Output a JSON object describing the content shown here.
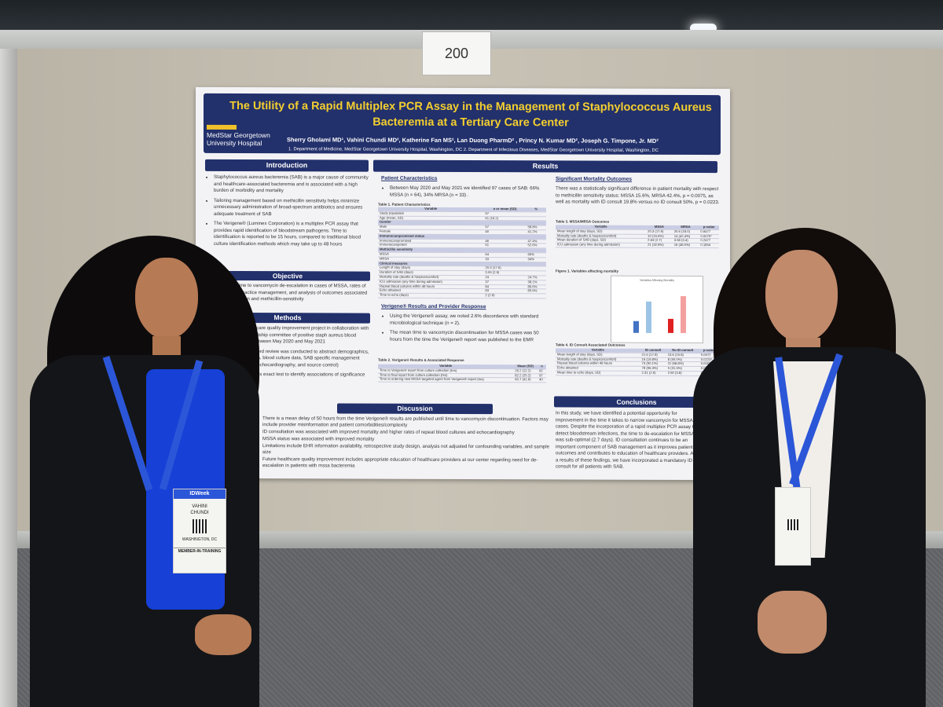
{
  "booth": {
    "number": "200"
  },
  "poster": {
    "title": "The Utility of a Rapid Multiplex PCR Assay in the Management of Staphylococcus Aureus Bacteremia at a Tertiary Care Center",
    "logo_line1": "MedStar Georgetown",
    "logo_line2": "University Hospital",
    "authors": "Sherry Gholami MD¹, Vahini Chundi MD², Katherine Fan MS², Lan Duong PharmD² , Princy N. Kumar MD², Joseph G. Timpone, Jr. MD²",
    "affiliations": "1.   Department of Medicine, MedStar Georgetown University Hospital, Washington, DC  2. Department of Infectious Diseases, MedStar Georgetown University Hospital, Washington, DC",
    "introduction": {
      "heading": "Introduction",
      "bullets": [
        "Staphylococcus aureus bacteremia (SAB) is a major cause of community and healthcare-associated bacteremia and is associated with a high burden of morbidity and mortality",
        "Tailoring management based on methicillin sensitivity helps minimize unnecessary administration of broad-spectrum antibiotics and ensures adequate treatment of SAB",
        "The Verigene® (Luminex Corporation) is a multiplex PCR assay that provides rapid identification of bloodstream pathogens. Time to identification is reported to be 15 hours, compared to traditional blood culture identification methods which may take up to 48 hours"
      ]
    },
    "objective": {
      "heading": "Objective",
      "text": "To determine time to vancomycin de-escalation in cases of MSSA, rates of achieving best practice management, and analysis of outcomes associated with ID consultation and methicillin-sensitivity"
    },
    "methods": {
      "heading": "Methods",
      "bullets": [
        "Single-center healthcare quality improvement project in collaboration with our antibiotic stewardship committee of positive staph aureus blood cultures at MGUH between May 2020 and May 2021",
        "Electronic health record review was conducted to abstract demographics, clinical characteristics, blood culture data, SAB specific management (antibiotic selection, echocardiography, and source control)",
        "Chi-square and fishers exact test to identify associations of significance"
      ]
    },
    "results": {
      "heading": "Results",
      "patient_char_title": "Patient Characteristics",
      "patient_char_text": "Between May 2020 and May 2021 we identified 97 cases of SAB: 66% MSSA (n = 64), 34% MRSA (n = 33) .",
      "table1_title": "Table 1. Patient Characteristics",
      "table1_headers": [
        "Variable",
        "n or mean (SD)",
        "%"
      ],
      "table1_rows": [
        [
          "Study population",
          "97",
          ""
        ],
        [
          "Age (mean, SD)",
          "61 (16.2)",
          ""
        ],
        [
          "Gender",
          "",
          ""
        ],
        [
          "Male",
          "57",
          "58.8%"
        ],
        [
          "Female",
          "40",
          "41.2%"
        ],
        [
          "Immunocompromised status",
          "",
          ""
        ],
        [
          "Immunocompromised",
          "46",
          "47.4%"
        ],
        [
          "Immunocompetent",
          "51",
          "52.6%"
        ],
        [
          "Methicillin sensitivity",
          "",
          ""
        ],
        [
          "MSSA",
          "64",
          "66%"
        ],
        [
          "MRSA",
          "33",
          "34%"
        ],
        [
          "Clinical measures",
          "",
          ""
        ],
        [
          "Length of stay (days)",
          "20.3 (17.6)",
          ""
        ],
        [
          "Duration of SAB (days)",
          "3.09 (2.9)",
          ""
        ],
        [
          "Mortality rate (deaths & hospice/comfort)",
          "24",
          "24.7%"
        ],
        [
          "ICU admission (any time during admission)",
          "37",
          "38.1%"
        ],
        [
          "Repeat blood cultures within 48 hours",
          "84",
          "86.6%"
        ],
        [
          "Echo obtained",
          "83",
          "85.6%"
        ],
        [
          "Time to echo (days)",
          "2 (2.9)",
          ""
        ]
      ],
      "verigene_title": "Verigene® Results and Provider Response",
      "verigene_bullets": [
        "Using the Verigene® assay, we noted 2.6% discordance with standard microbiological technique (n = 2).",
        "The mean time to vancomycin discontinuation for MSSA cases was 50 hours from the time the Verigene® report was published to the EMR"
      ],
      "table2_title": "Table 2. Verigene® Results & Associated Response",
      "table2_headers": [
        "Variable",
        "Mean (SD)",
        "n"
      ],
      "table2_rows": [
        [
          "Time to Verigene® report from culture collection (hrs)",
          "26.2 (12.2)",
          "92"
        ],
        [
          "Time to final report from culture collection (hrs)",
          "82.2 (25.2)",
          "97"
        ],
        [
          "Time to ordering new MSSA-targeted agent from Verigene® report (hrs)",
          "60.7 (41.6)",
          "40"
        ]
      ],
      "mortality_title": "Significant Mortality Outcomes",
      "mortality_text": "There was a statistically significant difference in patient mortality with respect to methicillin sensitivity status: MSSA 15.6%, MRSA 42.4%, p = 0.0075, as well as mortality with ID consult 19.8% versus no ID consult 50%, p = 0.0223.",
      "table3_title": "Table 3. MSSA/MRSA Outcomes",
      "table3_headers": [
        "Variable",
        "MSSA",
        "MRSA",
        "p-value"
      ],
      "table3_rows": [
        [
          "Mean length of stay (days, SD)",
          "20.3 (17.6)",
          "20.6 (18.0)",
          "0.9477"
        ],
        [
          "Mortality rate (deaths & hospice/comfort)",
          "10 (15.6%)",
          "14 (42.4%)",
          "0.0075*"
        ],
        [
          "Mean duration of SAB (days, SD)",
          "2.64 (2.7)",
          "3.58 (3.4)",
          "0.2477"
        ],
        [
          "ICU admission (any time during admission)",
          "21 (32.8%)",
          "16 (48.5%)",
          "0.1854"
        ]
      ],
      "figure_title": "Figure 1. Variables affecting mortality",
      "figure_inner_title": "Variables Affecting Mortality",
      "table4_title": "Table 4. ID Consult Associated Outcomes",
      "table4_headers": [
        "Variable",
        "ID consult",
        "No ID consult",
        "p-value"
      ],
      "table4_rows": [
        [
          "Mean length of stay (days, SD)",
          "21.6 (17.8)",
          "13.6 (15.8)",
          "0.0972"
        ],
        [
          "Mortality rate (deaths & hospice/comfort)",
          "16 (19.8%)",
          "8 (50.0%)",
          "0.0223*"
        ],
        [
          "Repeat blood cultures within 48 hours",
          "73 (90.1%)",
          "11 (68.8%)",
          "0.0001*"
        ],
        [
          "Echo obtained",
          "78 (96.3%)",
          "5 (31.3%)",
          "0.0001*"
        ],
        [
          "Mean time to echo (days, SD)",
          "2.31 (2.9)",
          "2.60 (3.8)",
          "0.8671"
        ]
      ]
    },
    "discussion": {
      "heading": "Discussion",
      "bullets": [
        "There is a mean delay of 50 hours from the time Verigene® results are published until time to vancomycin discontinuation. Factors may include provider misinformation and patient comorbidities/complexity",
        "ID consultation was associated with improved mortality and higher rates of repeat blood cultures and echocardiography",
        "MSSA status was associated with improved mortality",
        "Limitations include EHR information availability, retrospective study design, analysis not adjusted for confounding variables, and sample size",
        "Future healthcare quality improvement includes appropriate education of healthcare providers at our center regarding need for de-escalation in patients with mssa bacteremia"
      ]
    },
    "conclusion": {
      "heading": "Conclusions",
      "text": "In this study, we have identified a potential opportunity for improvement in the time it takes to narrow vancomycin for MSSA cases. Despite the incorporation of a rapid multiplex PCR assay to detect bloodstream infections, the time to de-escalation for MSSA was sub-optimal (2.7 days). ID consultation continues to be an important component of SAB management as it improves patient outcomes and contributes to education of healthcare providers. As a results of these findings, we have incorporated a mandatory ID consult for all patients with SAB."
    }
  },
  "badge_left": {
    "brand": "IDWeek",
    "first": "VAHINI",
    "last": "CHUNDI",
    "city": "WASHINGTON, DC",
    "role": "MEMBER-IN-TRAINING"
  },
  "lanyard_text": "IDWeek",
  "colors": {
    "poster_navy": "#22306b",
    "title_gold": "#f4cf2f",
    "lanyard_blue": "#2c56d8"
  },
  "chart_data": {
    "type": "bar",
    "title": "Variables Affecting Mortality",
    "categories": [
      "MSSA",
      "MRSA",
      "ID consult",
      "No ID consult"
    ],
    "values": [
      15.6,
      42.4,
      19.8,
      50
    ],
    "colors": [
      "#4472c4",
      "#9dc3e6",
      "#e02020",
      "#f4a0a0"
    ],
    "ylim": [
      0,
      60
    ]
  }
}
